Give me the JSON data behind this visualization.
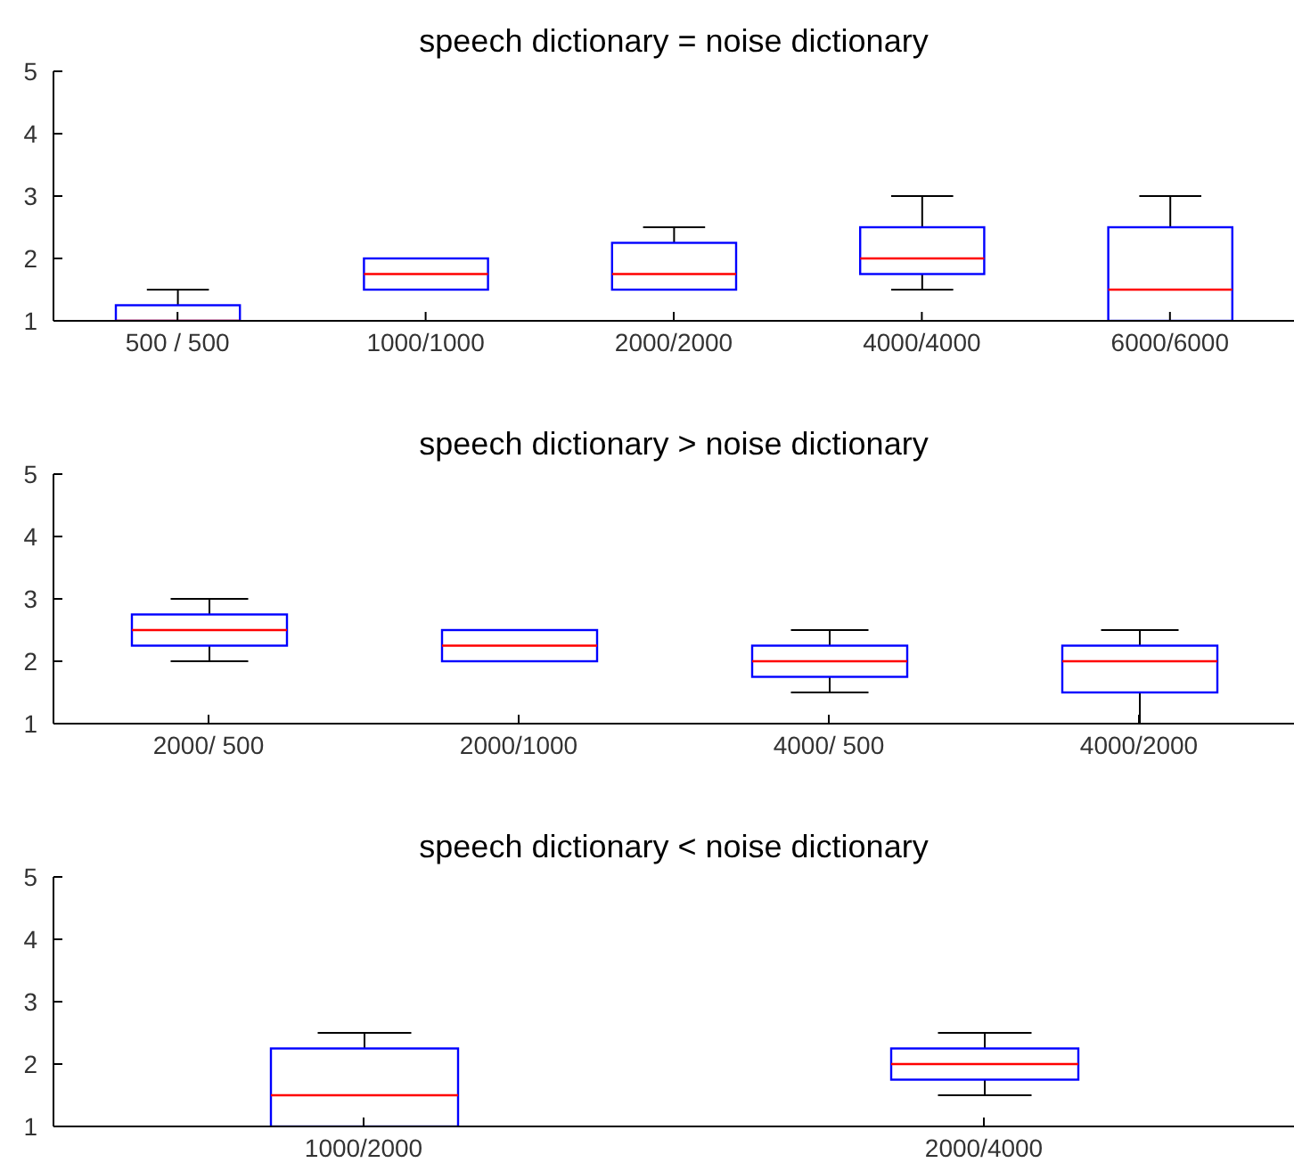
{
  "chart_data": [
    {
      "type": "box",
      "title": "speech dictionary = noise dictionary",
      "categories": [
        "500 / 500",
        "1000/1000",
        "2000/2000",
        "4000/4000",
        "6000/6000"
      ],
      "color": "#0000ff",
      "ylim": [
        1,
        5
      ],
      "yticks": [
        1,
        2,
        3,
        4,
        5
      ],
      "boxes": [
        {
          "low": 1,
          "q1": 1,
          "median": 1,
          "q3": 1.25,
          "high": 1.5
        },
        {
          "low": 1.5,
          "q1": 1.5,
          "median": 1.75,
          "q3": 2,
          "high": 2
        },
        {
          "low": 1.5,
          "q1": 1.5,
          "median": 1.75,
          "q3": 2.25,
          "high": 2.5
        },
        {
          "low": 1.5,
          "q1": 1.75,
          "median": 2,
          "q3": 2.5,
          "high": 3
        },
        {
          "low": 1,
          "q1": 1,
          "median": 1.5,
          "q3": 2.5,
          "high": 3
        }
      ]
    },
    {
      "type": "box",
      "title": "speech dictionary > noise dictionary",
      "categories": [
        "2000/ 500",
        "2000/1000",
        "4000/ 500",
        "4000/2000"
      ],
      "color": "#0000ff",
      "ylim": [
        1,
        5
      ],
      "yticks": [
        1,
        2,
        3,
        4,
        5
      ],
      "boxes": [
        {
          "low": 2,
          "q1": 2.25,
          "median": 2.5,
          "q3": 2.75,
          "high": 3
        },
        {
          "low": 2,
          "q1": 2,
          "median": 2.25,
          "q3": 2.5,
          "high": 2.5
        },
        {
          "low": 1.5,
          "q1": 1.75,
          "median": 2,
          "q3": 2.25,
          "high": 2.5
        },
        {
          "low": 1,
          "q1": 1.5,
          "median": 2,
          "q3": 2.25,
          "high": 2.5
        }
      ]
    },
    {
      "type": "box",
      "title": "speech dictionary < noise dictionary",
      "categories": [
        "1000/2000",
        "2000/4000"
      ],
      "color": "#0000ff",
      "ylim": [
        1,
        5
      ],
      "yticks": [
        1,
        2,
        3,
        4,
        5
      ],
      "boxes": [
        {
          "low": 1,
          "q1": 1,
          "median": 1.5,
          "q3": 2.25,
          "high": 2.5
        },
        {
          "low": 1.5,
          "q1": 1.75,
          "median": 2,
          "q3": 2.25,
          "high": 2.5
        }
      ]
    }
  ]
}
